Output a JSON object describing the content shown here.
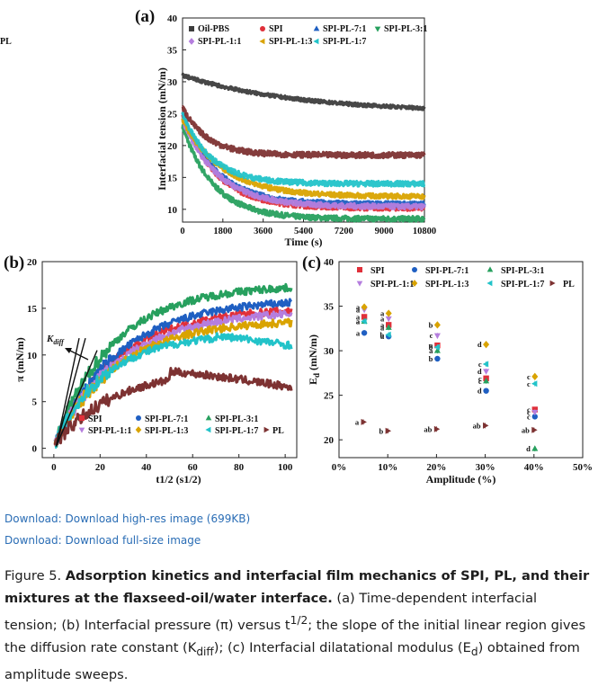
{
  "chart_data": [
    {
      "panel": "(a)",
      "type": "line",
      "xlabel": "Time (s)",
      "ylabel": "Interfacial tension (mN/m)",
      "xlim": [
        0,
        10800
      ],
      "ylim": [
        8,
        40
      ],
      "xticks": [
        0,
        1800,
        3600,
        5400,
        7200,
        9000,
        10800
      ],
      "yticks": [
        10,
        15,
        20,
        25,
        30,
        35,
        40
      ],
      "series": [
        {
          "name": "Oil-PBS",
          "color": "#3d3d3d",
          "marker": "square",
          "start": 31,
          "end": 25.2,
          "tau": 5000,
          "ks": 0.55
        },
        {
          "name": "SPI",
          "color": "#e0303a",
          "marker": "circle",
          "start": 25,
          "end": 10.2,
          "tau": 1500,
          "ks": 0.85
        },
        {
          "name": "SPI-PL-7:1",
          "color": "#1f5fc2",
          "marker": "triangle-up",
          "start": 25,
          "end": 10.8,
          "tau": 1500,
          "ks": 0.8
        },
        {
          "name": "SPI-PL-3:1",
          "color": "#27a05e",
          "marker": "triangle-down",
          "start": 23,
          "end": 8.5,
          "tau": 1400,
          "ks": 0.8
        },
        {
          "name": "SPI-PL-1:1",
          "color": "#b57ede",
          "marker": "diamond",
          "start": 24,
          "end": 10.4,
          "tau": 1600,
          "ks": 0.82
        },
        {
          "name": "SPI-PL-1:3",
          "color": "#d9a300",
          "marker": "triangle-left",
          "start": 24,
          "end": 12.0,
          "tau": 1800,
          "ks": 0.75
        },
        {
          "name": "SPI-PL-1:7",
          "color": "#22c3c9",
          "marker": "triangle-left",
          "start": 25,
          "end": 14.0,
          "tau": 1300,
          "ks": 0.8
        },
        {
          "name": "PL",
          "color": "#7d3232",
          "marker": "triangle-right",
          "start": 26,
          "end": 18.5,
          "tau": 1100,
          "ks": 0.85
        }
      ]
    },
    {
      "panel": "(b)",
      "type": "line",
      "xlabel": "t1/2 (s1/2)",
      "ylabel": "π (mN/m)",
      "xlim": [
        -5,
        105
      ],
      "ylim": [
        -1,
        20
      ],
      "xticks": [
        0,
        20,
        40,
        60,
        80,
        100
      ],
      "yticks": [
        0,
        5,
        10,
        15,
        20
      ],
      "annotation": "Kdiff",
      "series": [
        {
          "name": "SPI",
          "color": "#e0303a",
          "marker": "square",
          "plateau": 14.8,
          "k": 0.6,
          "peak": null
        },
        {
          "name": "SPI-PL-7:1",
          "color": "#1f5fc2",
          "marker": "circle",
          "plateau": 15.7,
          "k": 0.62,
          "peak": null
        },
        {
          "name": "SPI-PL-3:1",
          "color": "#27a05e",
          "marker": "triangle-up",
          "plateau": 17.2,
          "k": 0.75,
          "peak": null
        },
        {
          "name": "SPI-PL-1:1",
          "color": "#b57ede",
          "marker": "triangle-down",
          "plateau": 14.5,
          "k": 0.56,
          "peak": null
        },
        {
          "name": "SPI-PL-1:3",
          "color": "#d9a300",
          "marker": "diamond",
          "plateau": 13.5,
          "k": 0.55,
          "peak": null
        },
        {
          "name": "SPI-PL-1:7",
          "color": "#22c3c9",
          "marker": "triangle-left",
          "plateau": 12.0,
          "k": 0.6,
          "peak": 70,
          "endv": 11.0
        },
        {
          "name": "PL",
          "color": "#7d3232",
          "marker": "triangle-right",
          "plateau": 8.2,
          "k": 0.35,
          "peak": 50,
          "endv": 6.5
        }
      ]
    },
    {
      "panel": "(c)",
      "type": "scatter",
      "xlabel": "Amplitude (%)",
      "ylabel": "Ed (mN/m)",
      "xlim": [
        0,
        50
      ],
      "ylim": [
        18,
        40
      ],
      "xticks": [
        "0%",
        "10%",
        "20%",
        "30%",
        "40%",
        "50%"
      ],
      "yticks": [
        20,
        25,
        30,
        35,
        40
      ],
      "x": [
        5,
        10,
        20,
        30,
        40
      ],
      "series": [
        {
          "name": "SPI",
          "color": "#e0303a",
          "marker": "square",
          "values": [
            33.8,
            32.9,
            30.6,
            26.9,
            23.4
          ],
          "labels": [
            "a",
            "a",
            "a",
            "c",
            "c"
          ]
        },
        {
          "name": "SPI-PL-7:1",
          "color": "#1f5fc2",
          "marker": "circle",
          "values": [
            32.0,
            31.6,
            29.1,
            25.5,
            22.6
          ],
          "labels": [
            "a",
            "a",
            "b",
            "d",
            "c"
          ]
        },
        {
          "name": "SPI-PL-3:1",
          "color": "#27a05e",
          "marker": "triangle-up",
          "values": [
            33.3,
            32.6,
            30.0,
            26.6,
            19.0
          ],
          "labels": [
            "a",
            "a",
            "a",
            "c",
            "d"
          ]
        },
        {
          "name": "SPI-PL-1:1",
          "color": "#b57ede",
          "marker": "triangle-down",
          "values": [
            34.6,
            33.6,
            31.7,
            27.7,
            23.1
          ],
          "labels": [
            "a",
            "a",
            "c",
            "d",
            "c"
          ]
        },
        {
          "name": "SPI-PL-1:3",
          "color": "#d9a300",
          "marker": "diamond",
          "values": [
            34.9,
            34.2,
            32.9,
            30.7,
            27.1
          ],
          "labels": [
            "a",
            "a",
            "b",
            "d",
            "c"
          ]
        },
        {
          "name": "SPI-PL-1:7",
          "color": "#22c3c9",
          "marker": "triangle-left",
          "values": [
            33.3,
            31.8,
            30.4,
            28.5,
            26.3
          ],
          "labels": [
            "a",
            "b",
            "b",
            "c",
            "c"
          ]
        },
        {
          "name": "PL",
          "color": "#7d3232",
          "marker": "triangle-right",
          "values": [
            22.0,
            21.0,
            21.2,
            21.6,
            21.1
          ],
          "labels": [
            "a",
            "b",
            "ab",
            "ab",
            "ab"
          ]
        }
      ]
    }
  ],
  "links": {
    "high_res": "Download: Download high-res image (699KB)",
    "full_size": "Download: Download full-size image"
  },
  "caption": {
    "label": "Figure 5.",
    "title": "Adsorption kinetics and interfacial film mechanics of SPI, PL, and their mixtures at the flaxseed-oil/water interface.",
    "body_a": "(a) Time-dependent interfacial tension; (b) Interfacial pressure (π) versus t",
    "sup_half": "1/2",
    "body_b": "; the slope of the initial linear region gives the diffusion rate constant (K",
    "sub_diff": "diff",
    "body_c": "); (c) Interfacial dilatational modulus (E",
    "sub_d": "d",
    "body_d": ") obtained from amplitude sweeps."
  }
}
